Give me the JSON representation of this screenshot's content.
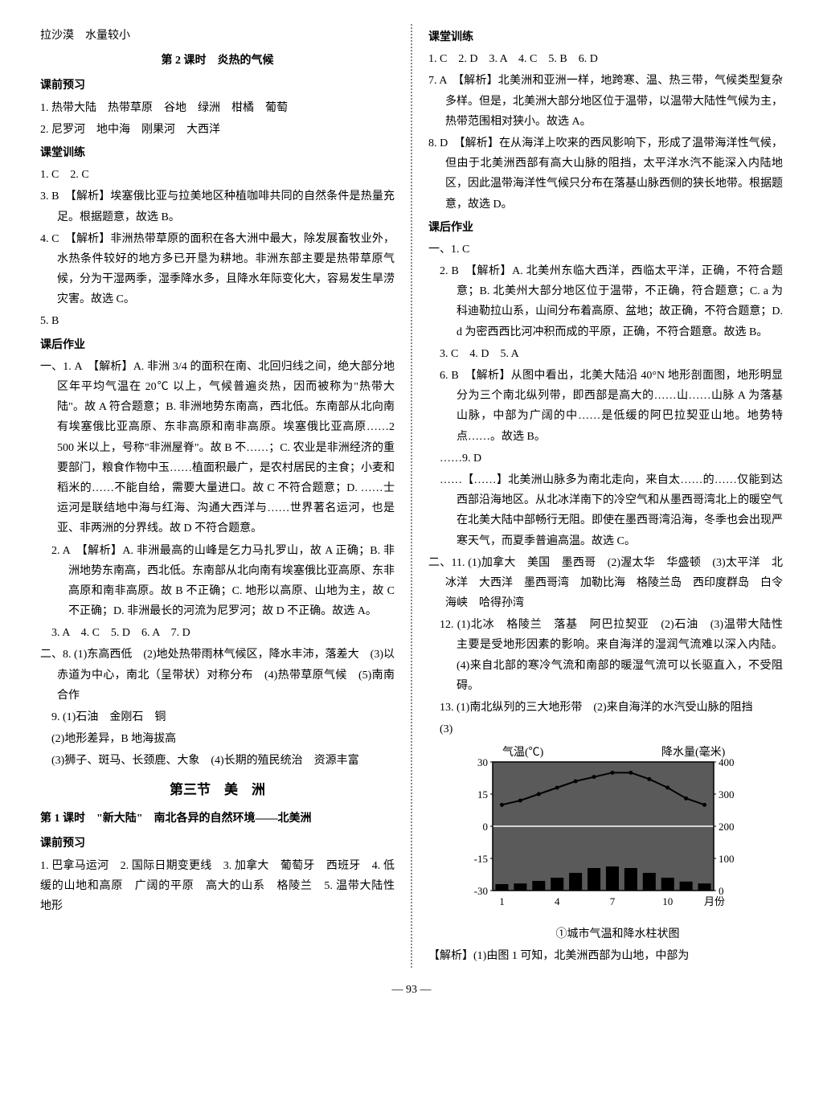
{
  "left": {
    "l1": "拉沙漠　水量较小",
    "lesson2_title": "第 2 课时　炎热的气候",
    "preview_h": "课前预习",
    "pre1": "1. 热带大陆　热带草原　谷地　绿洲　柑橘　葡萄",
    "pre2": "2. 尼罗河　地中海　刚果河　大西洋",
    "train_h": "课堂训练",
    "t1": "1. C　2. C",
    "t3": "3. B　【解析】埃塞俄比亚与拉美地区种植咖啡共同的自然条件是热量充足。根据题意，故选 B。",
    "t4": "4. C　【解析】非洲热带草原的面积在各大洲中最大，除发展畜牧业外，水热条件较好的地方多已开垦为耕地。非洲东部主要是热带草原气候，分为干湿两季，湿季降水多，且降水年际变化大，容易发生旱涝灾害。故选 C。",
    "t5": "5. B",
    "hw_h": "课后作业",
    "h1": "一、1. A　【解析】A. 非洲 3/4 的面积在南、北回归线之间，绝大部分地区年平均气温在 20℃ 以上，气候普遍炎热，因而被称为\"热带大陆\"。故 A 符合题意；B. 非洲地势东南高，西北低。东南部从北向南有埃塞俄比亚高原、东非高原和南非高原。埃塞俄比亚高原……2 500 米以上，号称\"非洲屋脊\"。故 B 不……；C. 农业是非洲经济的重要部门，粮食作物中玉……植面积最广，是农村居民的主食；小麦和稻米的……不能自给，需要大量进口。故 C 不符合题意；D. ……士运河是联结地中海与红海、沟通大西洋与……世界著名运河，也是亚、非两洲的分界线。故 D 不符合题意。",
    "h2": "2. A　【解析】A. 非洲最高的山峰是乞力马扎罗山，故 A 正确；B. 非洲地势东南高，西北低。东南部从北向南有埃塞俄比亚高原、东非高原和南非高原。故 B 不正确；C. 地形以高原、山地为主，故 C 不正确；D. 非洲最长的河流为尼罗河；故 D 不正确。故选 A。",
    "h3": "3. A　4. C　5. D　6. A　7. D",
    "h8": "二、8. (1)东高西低　(2)地处热带雨林气候区，降水丰沛，落差大　(3)以赤道为中心，南北（呈带状）对称分布　(4)热带草原气候　(5)南南合作",
    "h9": "9. (1)石油　金刚石　铜",
    "h9_2": "(2)地形差异，B 地海拔高",
    "h9_3": "(3)狮子、斑马、长颈鹿、大象　(4)长期的殖民统治　资源丰富",
    "sec3_title": "第三节　美　洲",
    "lesson1_title": "第 1 课时　\"新大陆\"　南北各异的自然环境——北美洲",
    "preview2_h": "课前预习",
    "p2_1": "1. 巴拿马运河　2. 国际日期变更线　3. 加拿大　葡萄牙　西班牙　4. 低缓的山地和高原　广阔的平原　高大的山系　格陵兰　5. 温带大陆性　地形"
  },
  "right": {
    "train_h": "课堂训练",
    "t1": "1. C　2. D　3. A　4. C　5. B　6. D",
    "t7": "7. A　【解析】北美洲和亚洲一样，地跨寒、温、热三带，气候类型复杂多样。但是，北美洲大部分地区位于温带，以温带大陆性气候为主，热带范围相对狭小。故选 A。",
    "t8": "8. D　【解析】在从海洋上吹来的西风影响下，形成了温带海洋性气候，但由于北美洲西部有高大山脉的阻挡，太平洋水汽不能深入内陆地区，因此温带海洋性气候只分布在落基山脉西侧的狭长地带。根据题意，故选 D。",
    "hw_h": "课后作业",
    "h1_head": "一、1. C",
    "h2": "2. B　【解析】A. 北美州东临大西洋，西临太平洋，正确，不符合题意；B. 北美州大部分地区位于温带，不正确，符合题意；C. a 为科迪勒拉山系，山间分布着高原、盆地；故正确，不符合题意；D. d 为密西西比河冲积而成的平原，正确，不符合题意。故选 B。",
    "h3": "3. C　4. D　5. A",
    "h6": "6. B　【解析】从图中看出，北美大陆沿 40°N 地形剖面图，地形明显分为三个南北纵列带，即西部是高大的……山……山脉 A 为落基山脉，中部为广阔的中……是低缓的阿巴拉契亚山地。地势特点……。故选 B。",
    "h7": "……9. D",
    "h10": "……【……】北美洲山脉多为南北走向，来自太……的……仅能到达西部沿海地区。从北冰洋南下的冷空气和从墨西哥湾北上的暖空气在北美大陆中部畅行无阻。即使在墨西哥湾沿海，冬季也会出现严寒天气，而夏季普遍高温。故选 C。",
    "b11": "二、11. (1)加拿大　美国　墨西哥　(2)渥太华　华盛顿　(3)太平洋　北冰洋　大西洋　墨西哥湾　加勒比海　格陵兰岛　西印度群岛　白令海峡　哈得孙湾",
    "b12": "12. (1)北冰　格陵兰　落基　阿巴拉契亚　(2)石油　(3)温带大陆性　主要是受地形因素的影响。来自海洋的湿润气流难以深入内陆。(4)来自北部的寒冷气流和南部的暖湿气流可以长驱直入，不受阻碍。",
    "b13": "13. (1)南北纵列的三大地形带　(2)来自海洋的水汽受山脉的阻挡",
    "b13_3": "(3)",
    "chart": {
      "temp_label": "气温(℃)",
      "rain_label": "降水量(毫米)",
      "temp_ticks": [
        "30",
        "15",
        "0",
        "-15",
        "-30"
      ],
      "rain_ticks": [
        "400",
        "300",
        "200",
        "100",
        "0"
      ],
      "x_ticks": [
        "1",
        "4",
        "7",
        "10"
      ],
      "x_label": "月份",
      "caption": "①城市气温和降水柱状图",
      "temp_values": [
        10,
        12,
        15,
        18,
        21,
        23,
        25,
        25,
        22,
        18,
        13,
        10
      ],
      "rain_values": [
        20,
        22,
        30,
        40,
        55,
        70,
        75,
        70,
        55,
        40,
        28,
        22
      ],
      "background": "#5a5a5a",
      "plot_bg": "#5a5a5a",
      "axis_color": "#000",
      "temp_line_color": "#000",
      "bar_color": "#000"
    },
    "last": "【解析】(1)由图 1 可知，北美洲西部为山地，中部为"
  },
  "page_num": "— 93 —"
}
